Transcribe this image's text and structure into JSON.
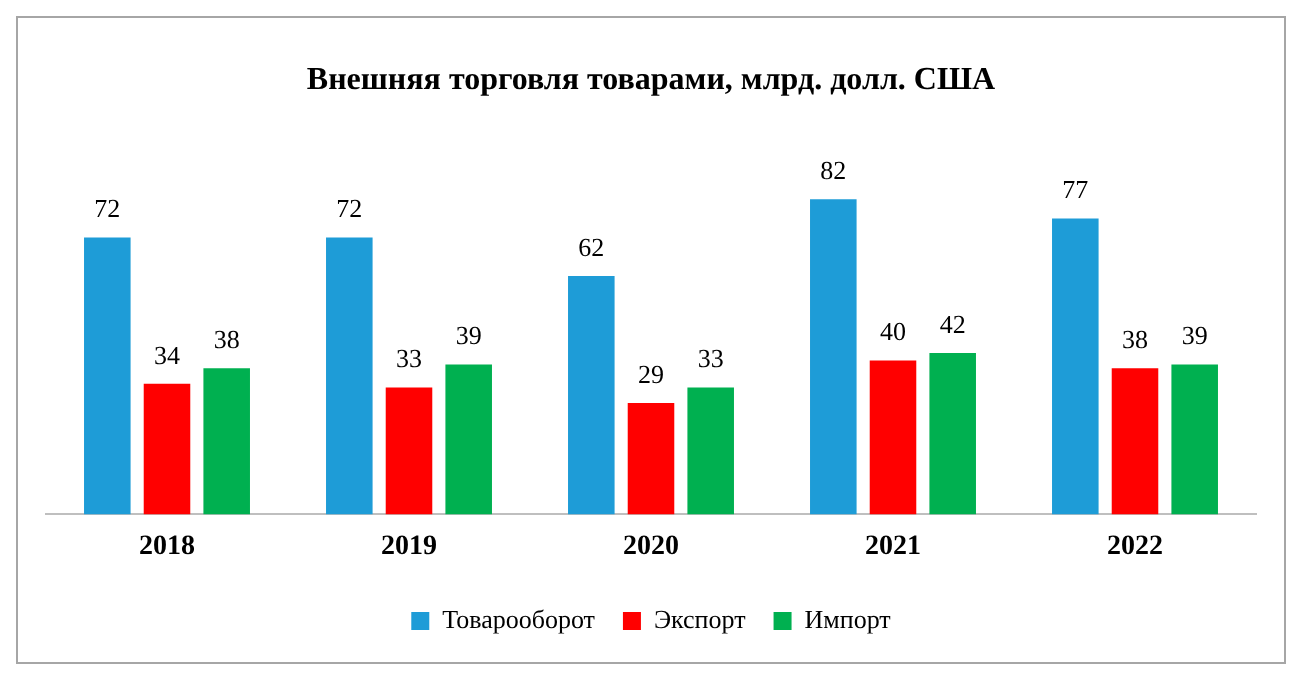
{
  "chart_data": {
    "type": "bar",
    "title": "Внешняя торговля товарами, млрд. долл. США",
    "categories": [
      "2018",
      "2019",
      "2020",
      "2021",
      "2022"
    ],
    "series": [
      {
        "name": "Товарооборот",
        "color": "#1e9cd7",
        "values": [
          72,
          72,
          62,
          82,
          77
        ]
      },
      {
        "name": "Экспорт",
        "color": "#ff0000",
        "values": [
          34,
          33,
          29,
          40,
          38
        ]
      },
      {
        "name": "Импорт",
        "color": "#00b050",
        "values": [
          38,
          39,
          33,
          42,
          39
        ]
      }
    ],
    "data_labels": true,
    "legend": "bottom",
    "grid": false,
    "tick_labels": "x"
  }
}
